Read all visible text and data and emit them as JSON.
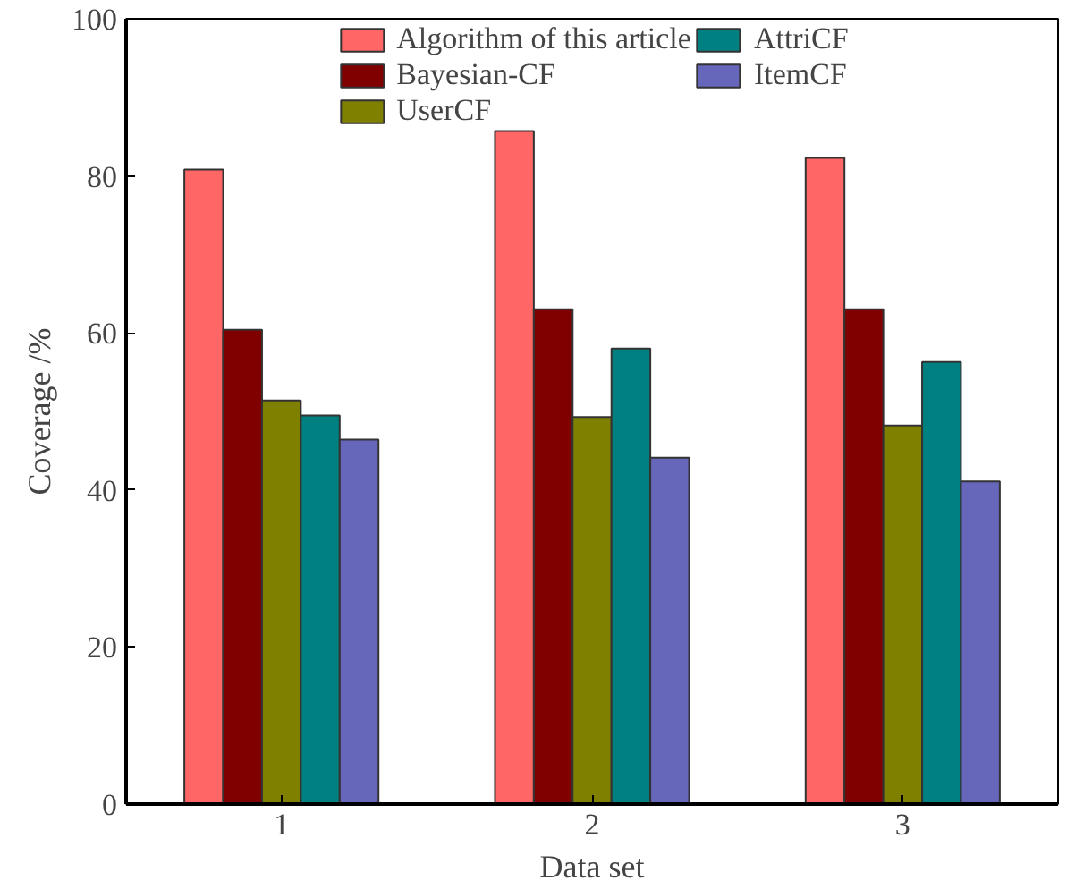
{
  "chart_data": {
    "type": "bar",
    "xlabel": "Data set",
    "ylabel": "Coverage /%",
    "categories": [
      "1",
      "2",
      "3"
    ],
    "series": [
      {
        "name": "Algorithm of this article",
        "color": "#ff6666",
        "values": [
          80.8,
          85.7,
          82.3
        ]
      },
      {
        "name": "Bayesian-CF",
        "color": "#800000",
        "values": [
          60.4,
          63.0,
          63.0
        ]
      },
      {
        "name": "UserCF",
        "color": "#808000",
        "values": [
          51.4,
          49.3,
          48.2
        ]
      },
      {
        "name": "AttriCF",
        "color": "#008080",
        "values": [
          49.5,
          58.0,
          56.3
        ]
      },
      {
        "name": "ItemCF",
        "color": "#6666bb",
        "values": [
          46.4,
          44.1,
          41.1
        ]
      }
    ],
    "ylim": [
      0,
      100
    ],
    "yticks": [
      0,
      20,
      40,
      60,
      80,
      100
    ],
    "grid": false,
    "legend": "top"
  }
}
